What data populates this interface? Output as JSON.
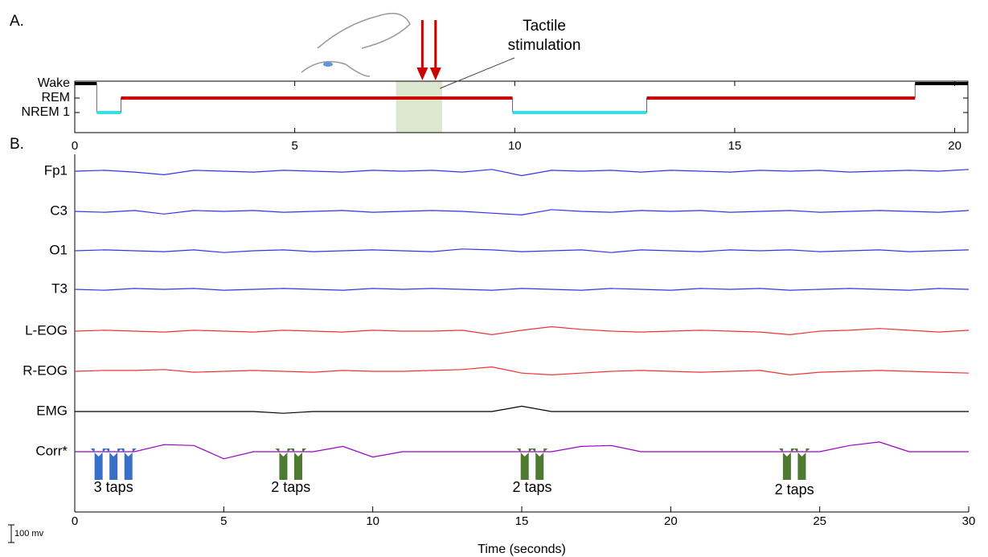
{
  "chart_data": [
    {
      "type": "hypnogram",
      "panel": "A.",
      "categories": [
        "Wake",
        "REM",
        "NREM 1"
      ],
      "segments": [
        {
          "stage": "Wake",
          "start": 0,
          "end": 0.5
        },
        {
          "stage": "NREM 1",
          "start": 0.5,
          "end": 1.05
        },
        {
          "stage": "REM",
          "start": 1.05,
          "end": 9.95
        },
        {
          "stage": "NREM 1",
          "start": 9.95,
          "end": 13
        },
        {
          "stage": "REM",
          "start": 13,
          "end": 19.1
        },
        {
          "stage": "Wake",
          "start": 19.1,
          "end": 20.3
        }
      ],
      "stage_colors": {
        "Wake": "#000000",
        "REM": "#cc0000",
        "NREM 1": "#33e0e8"
      },
      "xlim": [
        0,
        20.3
      ],
      "xticks": [
        0,
        5,
        10,
        15,
        20
      ],
      "highlight": {
        "start": 7.3,
        "end": 8.35,
        "color": "#dbe8cf"
      },
      "annotation": "Tactile stimulation",
      "arrows_x": [
        7.9,
        8.2
      ],
      "arrow_color": "#cc0000"
    },
    {
      "type": "traces",
      "panel": "B.",
      "x_label": "Time (seconds)",
      "xlim": [
        0,
        30
      ],
      "xticks": [
        0,
        5,
        10,
        15,
        20,
        25,
        30
      ],
      "scale_bar": {
        "value": 100,
        "label": "100 mv"
      },
      "x": [
        0,
        1,
        2,
        3,
        4,
        5,
        6,
        7,
        8,
        9,
        10,
        11,
        12,
        13,
        14,
        15,
        16,
        17,
        18,
        19,
        20,
        21,
        22,
        23,
        24,
        25,
        26,
        27,
        28,
        29,
        30
      ],
      "series": [
        {
          "name": "Fp1",
          "color": "#3333ee",
          "values": [
            0,
            5,
            -5,
            -20,
            5,
            0,
            -5,
            5,
            0,
            -5,
            5,
            0,
            5,
            -5,
            10,
            -25,
            5,
            0,
            5,
            -5,
            5,
            0,
            -5,
            5,
            0,
            5,
            -5,
            0,
            5,
            0,
            10
          ]
        },
        {
          "name": "C3",
          "color": "#3333ee",
          "values": [
            0,
            -5,
            5,
            -15,
            5,
            0,
            5,
            -5,
            0,
            5,
            -5,
            0,
            5,
            0,
            -10,
            -20,
            10,
            0,
            -5,
            5,
            0,
            5,
            -5,
            0,
            5,
            -5,
            0,
            5,
            0,
            -5,
            5
          ]
        },
        {
          "name": "O1",
          "color": "#3333ee",
          "values": [
            0,
            5,
            0,
            -5,
            5,
            -10,
            0,
            5,
            -5,
            0,
            5,
            0,
            -5,
            10,
            5,
            -5,
            0,
            5,
            -10,
            5,
            0,
            -5,
            5,
            0,
            5,
            -5,
            0,
            5,
            -5,
            0,
            5
          ]
        },
        {
          "name": "T3",
          "color": "#3333ee",
          "values": [
            0,
            -5,
            5,
            0,
            5,
            -5,
            0,
            5,
            0,
            -5,
            5,
            0,
            5,
            0,
            -5,
            5,
            0,
            -5,
            5,
            0,
            -5,
            5,
            0,
            5,
            -5,
            0,
            5,
            0,
            -5,
            5,
            0
          ]
        },
        {
          "name": "L-EOG",
          "color": "#ee3333",
          "values": [
            0,
            5,
            0,
            -5,
            5,
            0,
            -5,
            5,
            0,
            -5,
            5,
            0,
            0,
            5,
            -20,
            5,
            25,
            10,
            0,
            -5,
            0,
            5,
            0,
            -5,
            -20,
            0,
            5,
            15,
            5,
            -5,
            5
          ]
        },
        {
          "name": "R-EOG",
          "color": "#ee3333",
          "values": [
            0,
            5,
            5,
            10,
            -5,
            0,
            5,
            0,
            -5,
            5,
            0,
            0,
            5,
            10,
            25,
            -10,
            -20,
            -10,
            0,
            5,
            0,
            -5,
            0,
            5,
            -20,
            -5,
            0,
            5,
            0,
            -5,
            -10
          ]
        },
        {
          "name": "EMG",
          "color": "#000000",
          "values": [
            0,
            0,
            0,
            0,
            0,
            0,
            0,
            -10,
            0,
            0,
            0,
            0,
            0,
            0,
            0,
            30,
            0,
            0,
            0,
            0,
            0,
            0,
            0,
            0,
            0,
            0,
            0,
            0,
            0,
            0,
            0
          ]
        },
        {
          "name": "Corr*",
          "color": "#9900cc",
          "values": [
            0,
            0,
            0,
            40,
            35,
            -40,
            0,
            0,
            0,
            30,
            -30,
            0,
            0,
            0,
            0,
            0,
            0,
            30,
            35,
            0,
            0,
            0,
            0,
            0,
            0,
            0,
            35,
            55,
            0,
            0,
            0
          ]
        }
      ],
      "annotations": [
        {
          "text": "3 taps",
          "x": [
            0.8,
            1.3,
            1.8
          ],
          "color": "#3a6fc8"
        },
        {
          "text": "2 taps",
          "x": [
            7.0,
            7.5
          ],
          "color": "#4e7a32"
        },
        {
          "text": "2 taps",
          "x": [
            15.1,
            15.6
          ],
          "color": "#4e7a32"
        },
        {
          "text": "2 taps",
          "x": [
            23.9,
            24.4
          ],
          "color": "#4e7a32"
        }
      ]
    }
  ]
}
